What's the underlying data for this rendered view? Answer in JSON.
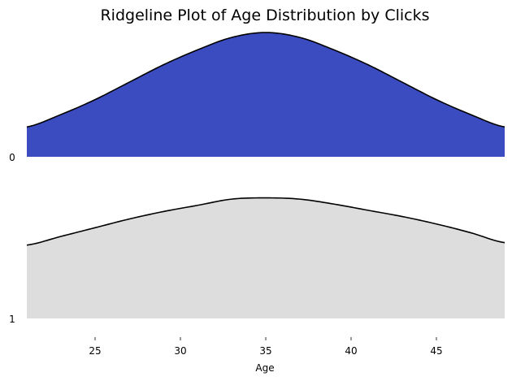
{
  "chart_data": {
    "type": "area",
    "title": "Ridgeline Plot of Age Distribution by Clicks",
    "xlabel": "Age",
    "ylabel": "",
    "xlim": [
      21,
      49
    ],
    "x_ticks": [
      25,
      30,
      35,
      40,
      45
    ],
    "grid": false,
    "x": [
      21,
      23,
      25,
      27,
      29,
      31,
      33,
      35,
      37,
      39,
      41,
      43,
      45,
      47,
      49
    ],
    "series": [
      {
        "name": "0",
        "color": "#3b4cc0",
        "values": [
          0.24,
          0.34,
          0.46,
          0.6,
          0.74,
          0.86,
          0.96,
          1.0,
          0.96,
          0.86,
          0.74,
          0.6,
          0.46,
          0.34,
          0.24
        ]
      },
      {
        "name": "1",
        "color": "#dddddd",
        "values": [
          0.59,
          0.66,
          0.73,
          0.8,
          0.86,
          0.91,
          0.96,
          0.97,
          0.96,
          0.92,
          0.87,
          0.82,
          0.76,
          0.69,
          0.61
        ]
      }
    ]
  }
}
